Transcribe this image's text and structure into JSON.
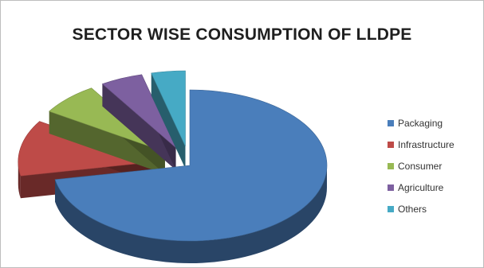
{
  "chart_data": {
    "type": "pie",
    "style": "3d-exploded",
    "title": "SECTOR WISE CONSUMPTION OF LLDPE",
    "categories": [
      "Packaging",
      "Infrastructure",
      "Consumer",
      "Agriculture",
      "Others"
    ],
    "values": [
      72,
      12,
      7,
      5,
      4
    ],
    "unit": "%",
    "colors": [
      "#4a7ebb",
      "#be4b48",
      "#98b954",
      "#7d60a0",
      "#46aac5"
    ],
    "legend_position": "right"
  }
}
